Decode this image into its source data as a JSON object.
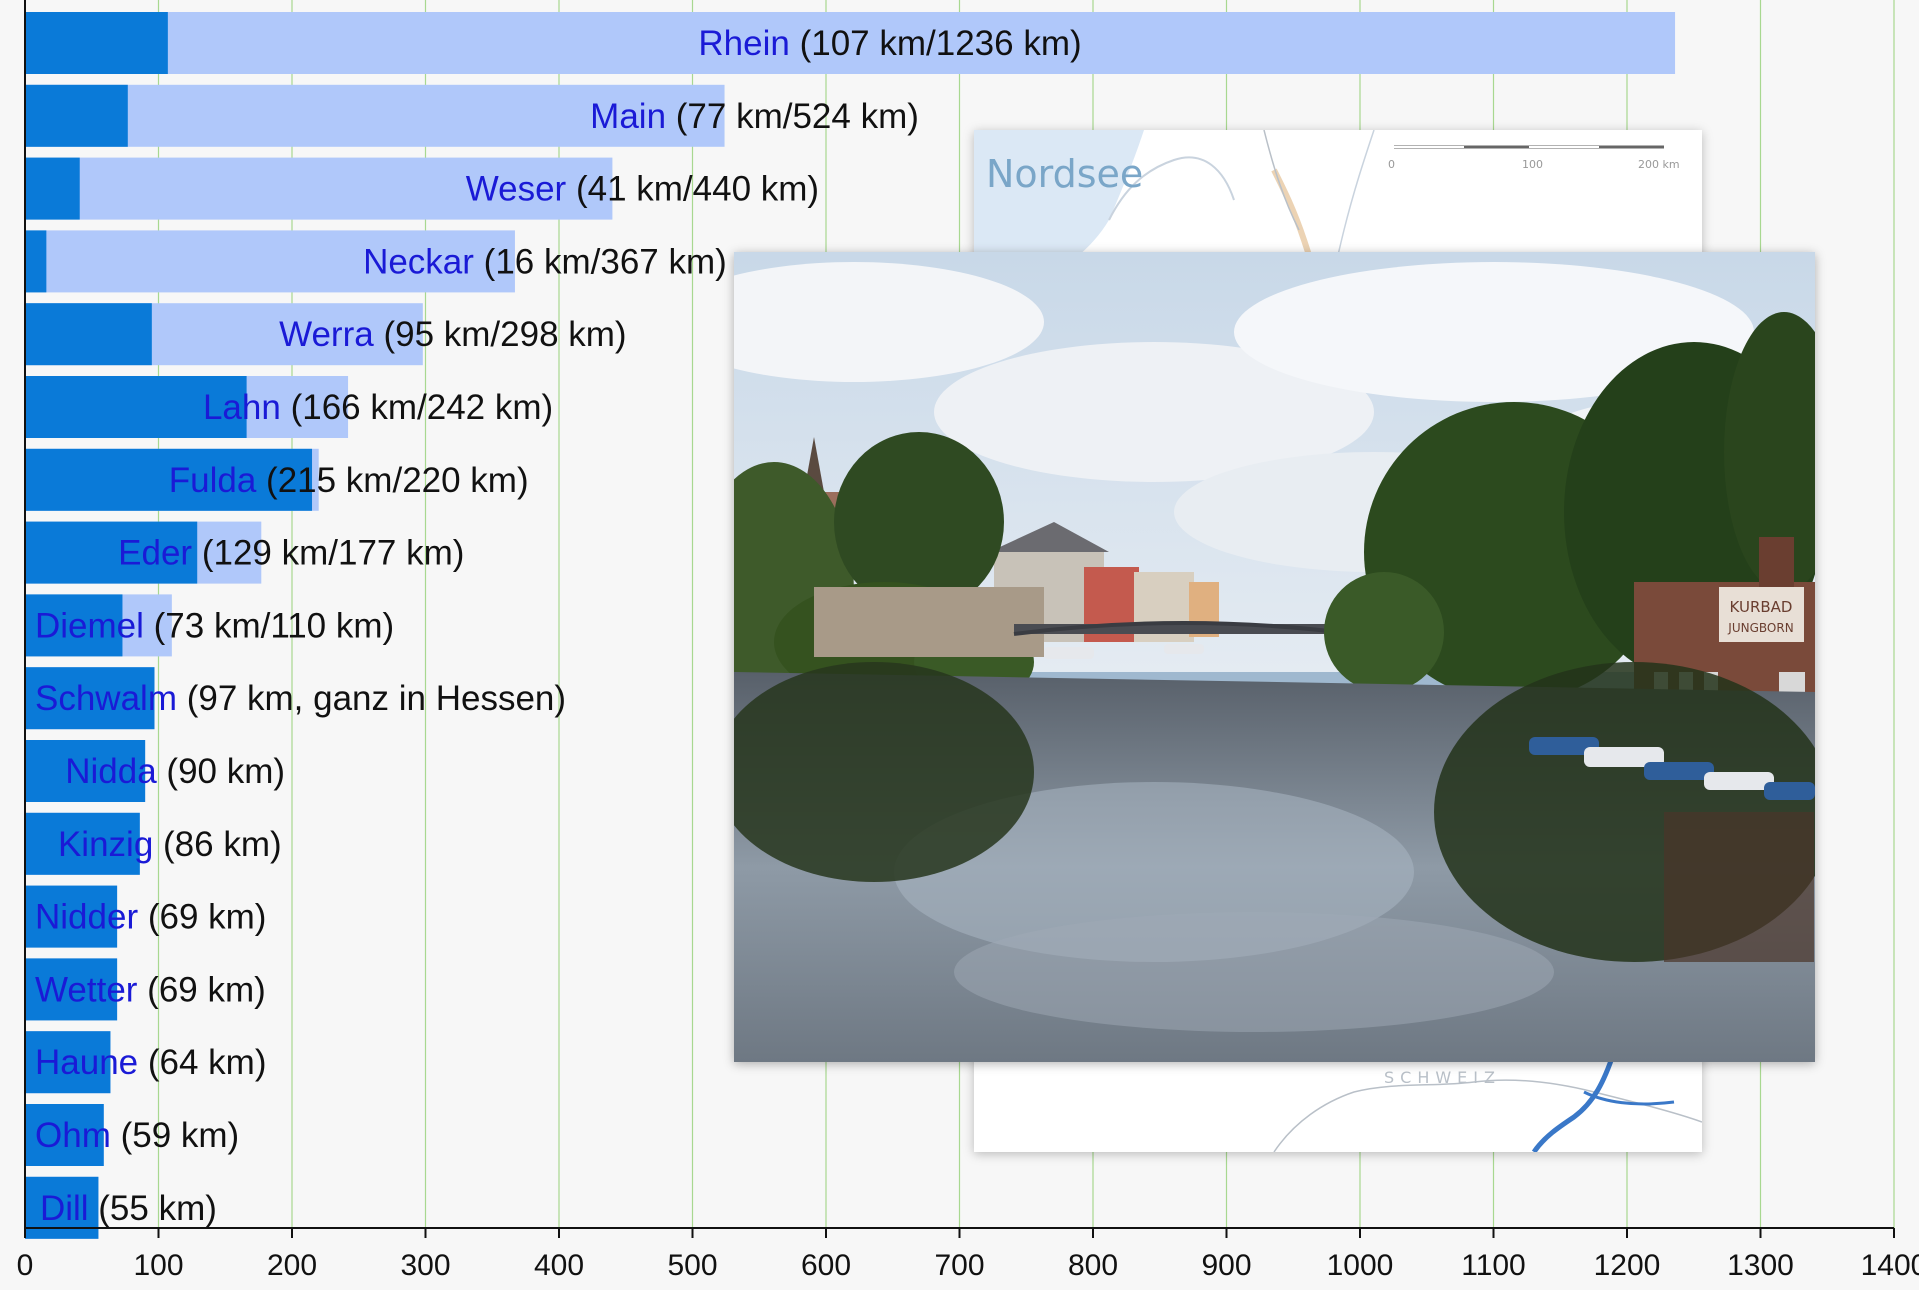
{
  "chart_data": {
    "type": "bar",
    "orientation": "horizontal",
    "stacked_overlay": true,
    "categories": [
      "Rhein",
      "Main",
      "Weser",
      "Neckar",
      "Werra",
      "Lahn",
      "Fulda",
      "Eder",
      "Diemel",
      "Schwalm",
      "Nidda",
      "Kinzig",
      "Nidder",
      "Wetter",
      "Haune",
      "Ohm",
      "Dill"
    ],
    "series": [
      {
        "values": [
          1236,
          524,
          440,
          367,
          298,
          242,
          220,
          177,
          110,
          97,
          90,
          86,
          69,
          69,
          64,
          59,
          55
        ]
      },
      {
        "values": [
          107,
          77,
          41,
          16,
          95,
          166,
          215,
          129,
          73,
          97,
          90,
          86,
          69,
          69,
          64,
          59,
          55
        ]
      }
    ],
    "labels": [
      {
        "name": "Rhein",
        "info": "(107 km/1236 km)"
      },
      {
        "name": "Main",
        "info": "(77 km/524 km)"
      },
      {
        "name": "Weser",
        "info": "(41 km/440 km)"
      },
      {
        "name": "Neckar",
        "info": "(16 km/367 km)"
      },
      {
        "name": "Werra",
        "info": "(95 km/298 km)"
      },
      {
        "name": "Lahn",
        "info": "(166 km/242 km)"
      },
      {
        "name": "Fulda",
        "info": "(215 km/220 km)"
      },
      {
        "name": "Eder",
        "info": "(129 km/177 km)"
      },
      {
        "name": "Diemel",
        "info": "(73 km/110 km)"
      },
      {
        "name": "Schwalm",
        "info": "(97 km, ganz in Hessen)"
      },
      {
        "name": "Nidda",
        "info": "(90 km)"
      },
      {
        "name": "Kinzig",
        "info": "(86 km)"
      },
      {
        "name": "Nidder",
        "info": "(69 km)"
      },
      {
        "name": "Wetter",
        "info": "(69 km)"
      },
      {
        "name": "Haune",
        "info": "(64 km)"
      },
      {
        "name": "Ohm",
        "info": "(59 km)"
      },
      {
        "name": "Dill",
        "info": "(55 km)"
      }
    ],
    "xlim": [
      0,
      1400
    ],
    "xticks": [
      0,
      100,
      200,
      300,
      400,
      500,
      600,
      700,
      800,
      900,
      1000,
      1100,
      1200,
      1300,
      1400
    ],
    "grid": "vertical",
    "colors": {
      "total_bar": "#b0c8fa",
      "hessen_bar": "#0a7ad8",
      "gridline": "#a8d890",
      "label_name": "#1a1ad6"
    }
  },
  "map": {
    "sea_label": "Nordsee",
    "scale_ticks": [
      "0",
      "100",
      "200 km"
    ],
    "region_label": "SCHWEIZ"
  },
  "photo": {
    "sign_line1": "KURBAD",
    "sign_line2": "JUNGBORN"
  }
}
